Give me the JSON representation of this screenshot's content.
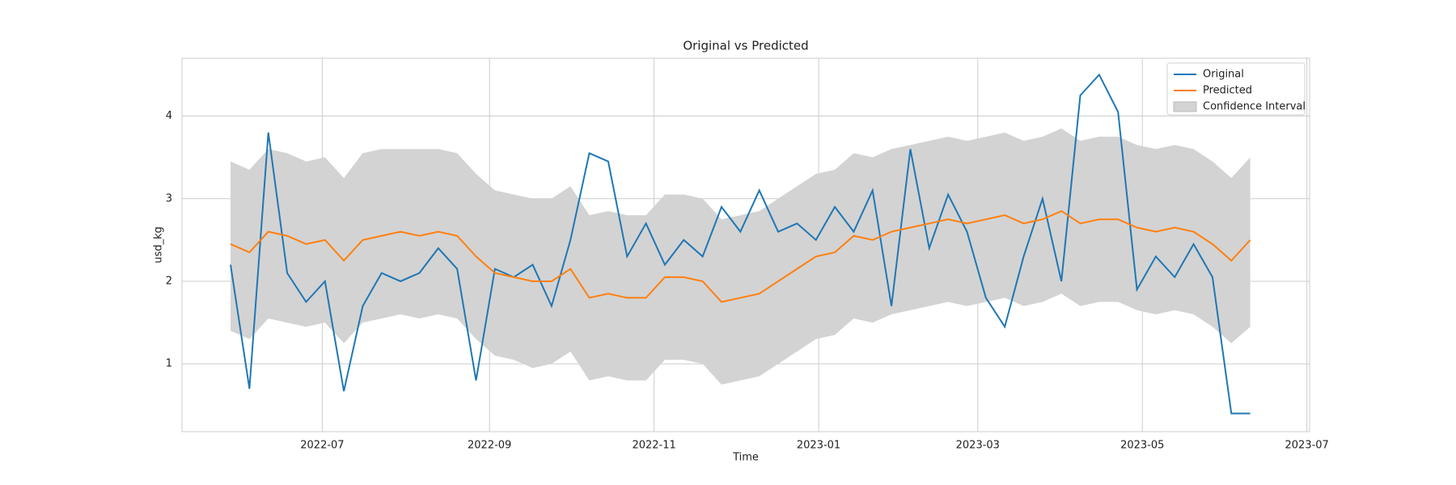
{
  "chart_data": {
    "type": "line",
    "title": "Original vs Predicted",
    "x_label": "Time",
    "y_label": "usd_kg",
    "x": [
      "2022-05-28",
      "2022-06-04",
      "2022-06-11",
      "2022-06-18",
      "2022-06-25",
      "2022-07-02",
      "2022-07-09",
      "2022-07-16",
      "2022-07-23",
      "2022-07-30",
      "2022-08-06",
      "2022-08-13",
      "2022-08-20",
      "2022-08-27",
      "2022-09-03",
      "2022-09-10",
      "2022-09-17",
      "2022-09-24",
      "2022-10-01",
      "2022-10-08",
      "2022-10-15",
      "2022-10-22",
      "2022-10-29",
      "2022-11-05",
      "2022-11-12",
      "2022-11-19",
      "2022-11-26",
      "2022-12-03",
      "2022-12-10",
      "2022-12-17",
      "2022-12-24",
      "2022-12-31",
      "2023-01-07",
      "2023-01-14",
      "2023-01-21",
      "2023-01-28",
      "2023-02-04",
      "2023-02-11",
      "2023-02-18",
      "2023-02-25",
      "2023-03-04",
      "2023-03-11",
      "2023-03-18",
      "2023-03-25",
      "2023-04-01",
      "2023-04-08",
      "2023-04-15",
      "2023-04-22",
      "2023-04-29",
      "2023-05-06",
      "2023-05-13",
      "2023-05-20",
      "2023-05-27",
      "2023-06-03",
      "2023-06-10"
    ],
    "series": [
      {
        "name": "Original",
        "color": "#1f77b4",
        "values": [
          2.2,
          0.7,
          3.8,
          2.1,
          1.75,
          2.0,
          0.67,
          1.7,
          2.1,
          2.0,
          2.1,
          2.4,
          2.15,
          0.8,
          2.15,
          2.05,
          2.2,
          1.7,
          2.5,
          3.55,
          3.45,
          2.3,
          2.7,
          2.2,
          2.5,
          2.3,
          2.9,
          2.6,
          3.1,
          2.6,
          2.7,
          2.5,
          2.9,
          2.6,
          3.1,
          1.7,
          3.6,
          2.4,
          3.05,
          2.6,
          1.8,
          1.45,
          2.3,
          3.0,
          2.0,
          4.25,
          4.5,
          4.05,
          1.9,
          2.3,
          2.05,
          2.45,
          2.05,
          0.4,
          0.4
        ]
      },
      {
        "name": "Predicted",
        "color": "#ff7f0e",
        "values": [
          2.45,
          2.35,
          2.6,
          2.55,
          2.45,
          2.5,
          2.25,
          2.5,
          2.55,
          2.6,
          2.55,
          2.6,
          2.55,
          2.3,
          2.1,
          2.05,
          2.0,
          2.0,
          2.15,
          1.8,
          1.85,
          1.8,
          1.8,
          2.05,
          2.05,
          2.0,
          1.75,
          1.8,
          1.85,
          2.0,
          2.15,
          2.3,
          2.35,
          2.55,
          2.5,
          2.6,
          2.65,
          2.7,
          2.75,
          2.7,
          2.75,
          2.8,
          2.7,
          2.75,
          2.85,
          2.7,
          2.75,
          2.75,
          2.65,
          2.6,
          2.65,
          2.6,
          2.45,
          2.25,
          2.5
        ]
      }
    ],
    "band": {
      "name": "Confidence Interval",
      "color": "#d3d3d3",
      "lower": [
        1.4,
        1.3,
        1.55,
        1.5,
        1.45,
        1.5,
        1.25,
        1.5,
        1.55,
        1.6,
        1.55,
        1.6,
        1.55,
        1.3,
        1.1,
        1.05,
        0.95,
        1.0,
        1.15,
        0.8,
        0.85,
        0.8,
        0.8,
        1.05,
        1.05,
        1.0,
        0.75,
        0.8,
        0.85,
        1.0,
        1.15,
        1.3,
        1.35,
        1.55,
        1.5,
        1.6,
        1.65,
        1.7,
        1.75,
        1.7,
        1.75,
        1.8,
        1.7,
        1.75,
        1.85,
        1.7,
        1.75,
        1.75,
        1.65,
        1.6,
        1.65,
        1.6,
        1.45,
        1.25,
        1.45
      ],
      "upper": [
        3.45,
        3.35,
        3.6,
        3.55,
        3.45,
        3.5,
        3.25,
        3.55,
        3.6,
        3.6,
        3.6,
        3.6,
        3.55,
        3.3,
        3.1,
        3.05,
        3.0,
        3.0,
        3.15,
        2.8,
        2.85,
        2.8,
        2.8,
        3.05,
        3.05,
        3.0,
        2.75,
        2.8,
        2.85,
        3.0,
        3.15,
        3.3,
        3.35,
        3.55,
        3.5,
        3.6,
        3.65,
        3.7,
        3.75,
        3.7,
        3.75,
        3.8,
        3.7,
        3.75,
        3.85,
        3.7,
        3.75,
        3.75,
        3.65,
        3.6,
        3.65,
        3.6,
        3.45,
        3.25,
        3.5
      ]
    },
    "xlim": [
      "2022-05-10",
      "2023-07-02"
    ],
    "xticks": [
      "2022-07",
      "2022-09",
      "2022-11",
      "2023-01",
      "2023-03",
      "2023-05",
      "2023-07"
    ],
    "ylim": [
      0.18,
      4.7
    ],
    "yticks": [
      1,
      2,
      3,
      4
    ],
    "grid": true,
    "legend": "upper right"
  }
}
